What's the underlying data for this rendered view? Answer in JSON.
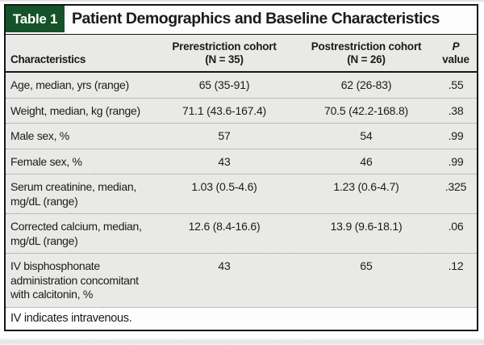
{
  "table": {
    "tag": "Table 1",
    "title": "Patient Demographics and Baseline Characteristics",
    "header": {
      "characteristics": "Characteristics",
      "pre_line1": "Prerestriction cohort",
      "pre_line2": "(N = 35)",
      "post_line1": "Postrestriction cohort",
      "post_line2": "(N = 26)",
      "p_line1": "P",
      "p_line2": "value"
    },
    "rows": [
      {
        "label": "Age, median, yrs (range)",
        "pre": "65 (35-91)",
        "post": "62 (26-83)",
        "p": ".55"
      },
      {
        "label": "Weight, median, kg (range)",
        "pre": "71.1 (43.6-167.4)",
        "post": "70.5 (42.2-168.8)",
        "p": ".38"
      },
      {
        "label": "Male sex, %",
        "pre": "57",
        "post": "54",
        "p": ".99"
      },
      {
        "label": "Female sex, %",
        "pre": "43",
        "post": "46",
        "p": ".99"
      },
      {
        "label": "Serum creatinine, median, mg/dL (range)",
        "pre": "1.03 (0.5-4.6)",
        "post": "1.23 (0.6-4.7)",
        "p": ".325"
      },
      {
        "label": "Corrected calcium, median, mg/dL (range)",
        "pre": "12.6 (8.4-16.6)",
        "post": "13.9 (9.6-18.1)",
        "p": ".06"
      },
      {
        "label": "IV bisphosphonate administration concomitant with calcitonin, %",
        "pre": "43",
        "post": "65",
        "p": ".12"
      }
    ],
    "footnote": "IV indicates intravenous."
  },
  "colors": {
    "tag_background_green": "#155229",
    "row_background_gray": "#e9e9e7",
    "border_black": "#161616",
    "dotted_separator_gray": "#8e8e8e"
  }
}
